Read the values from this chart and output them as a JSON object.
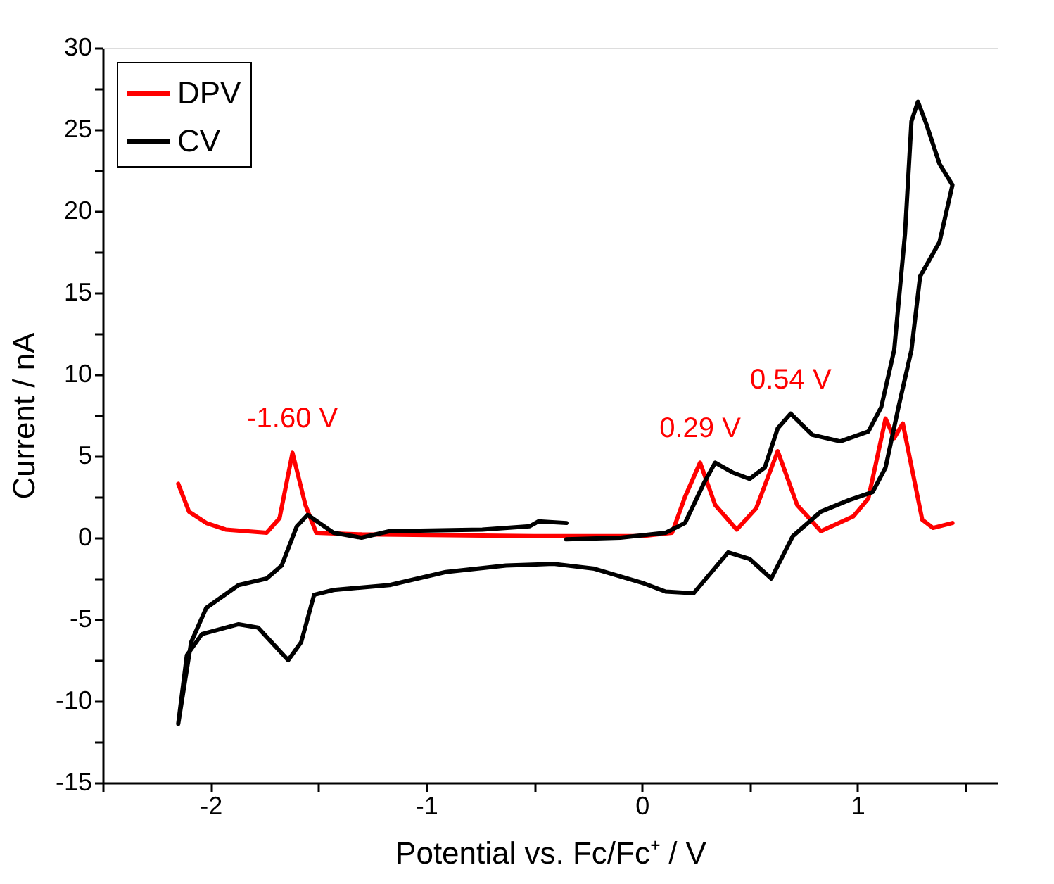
{
  "chart_data": {
    "type": "line",
    "xlabel": "Potential vs. Fc/Fc⁺ / V",
    "ylabel": "Current / nA",
    "xlim": [
      -2.5,
      1.65
    ],
    "ylim": [
      -15,
      30
    ],
    "xticks": [
      {
        "value": -2.5,
        "label": null
      },
      -2,
      {
        "value": -1.5,
        "label": null
      },
      -1,
      {
        "value": -0.5,
        "label": null
      },
      0,
      {
        "value": 0.5,
        "label": null
      },
      1,
      {
        "value": 1.5,
        "label": null
      }
    ],
    "yticks": [
      -15,
      {
        "value": -12.5,
        "label": null
      },
      -10,
      {
        "value": -7.5,
        "label": null
      },
      -5,
      {
        "value": -2.5,
        "label": null
      },
      0,
      {
        "value": 2.5,
        "label": null
      },
      5,
      {
        "value": 7.5,
        "label": null
      },
      10,
      {
        "value": 12.5,
        "label": null
      },
      15,
      {
        "value": 17.5,
        "label": null
      },
      20,
      {
        "value": 22.5,
        "label": null
      },
      25,
      {
        "value": 27.5,
        "label": null
      },
      30
    ],
    "grid": false,
    "legend": "top left",
    "marker": "none",
    "line_style": "solid",
    "series": [
      {
        "name": "DPV",
        "color": "#ff0000",
        "x": [
          -2.15,
          -2.1,
          -2.02,
          -1.93,
          -1.74,
          -1.68,
          -1.62,
          -1.56,
          -1.51,
          -1.3,
          -0.5,
          0.0,
          0.14,
          0.2,
          0.27,
          0.34,
          0.44,
          0.53,
          0.63,
          0.72,
          0.83,
          0.98,
          1.05,
          1.13,
          1.17,
          1.21,
          1.3,
          1.35,
          1.44
        ],
        "values": [
          3.3,
          1.6,
          0.9,
          0.5,
          0.3,
          1.2,
          5.2,
          2.0,
          0.3,
          0.2,
          0.1,
          0.1,
          0.3,
          2.5,
          4.6,
          2.0,
          0.5,
          1.8,
          5.3,
          2.0,
          0.4,
          1.3,
          2.4,
          7.3,
          6.1,
          7.0,
          1.1,
          0.6,
          0.9
        ]
      },
      {
        "name": "CV",
        "color": "#000000",
        "x": [
          -0.35,
          -0.48,
          -0.52,
          -0.74,
          -1.17,
          -1.3,
          -1.43,
          -1.55,
          -1.6,
          -1.67,
          -1.74,
          -1.87,
          -2.02,
          -2.09,
          -2.15,
          -2.11,
          -2.04,
          -1.87,
          -1.78,
          -1.64,
          -1.58,
          -1.52,
          -1.43,
          -1.17,
          -0.91,
          -0.63,
          -0.41,
          -0.22,
          0.01,
          0.11,
          0.24,
          0.4,
          0.5,
          0.6,
          0.7,
          0.83,
          0.96,
          1.07,
          1.13,
          1.19,
          1.25,
          1.29,
          1.38,
          1.44,
          1.38,
          1.32,
          1.28,
          1.25,
          1.22,
          1.17,
          1.11,
          1.05,
          0.92,
          0.79,
          0.69,
          0.63,
          0.57,
          0.5,
          0.42,
          0.34,
          0.29,
          0.2,
          0.11,
          -0.1,
          -0.35
        ],
        "values": [
          0.9,
          1.0,
          0.7,
          0.5,
          0.4,
          0.0,
          0.3,
          1.4,
          0.7,
          -1.7,
          -2.5,
          -2.9,
          -4.3,
          -6.4,
          -11.4,
          -7.2,
          -5.9,
          -5.3,
          -5.5,
          -7.5,
          -6.4,
          -3.5,
          -3.2,
          -2.9,
          -2.1,
          -1.7,
          -1.6,
          -1.9,
          -2.8,
          -3.3,
          -3.4,
          -0.9,
          -1.3,
          -2.5,
          0.1,
          1.6,
          2.3,
          2.8,
          4.3,
          8.0,
          11.5,
          16.0,
          18.1,
          21.6,
          22.9,
          25.3,
          26.7,
          25.5,
          18.6,
          11.5,
          8.0,
          6.5,
          5.9,
          6.3,
          7.6,
          6.7,
          4.3,
          3.6,
          4.0,
          4.6,
          3.4,
          0.9,
          0.3,
          0.0,
          -0.1
        ]
      }
    ],
    "annotations": [
      {
        "text": "-1.60 V",
        "x": -1.62,
        "y": 5.2
      },
      {
        "text": "0.29 V",
        "x": 0.27,
        "y": 4.6
      },
      {
        "text": "0.54 V",
        "x": 0.69,
        "y": 7.6
      }
    ]
  }
}
